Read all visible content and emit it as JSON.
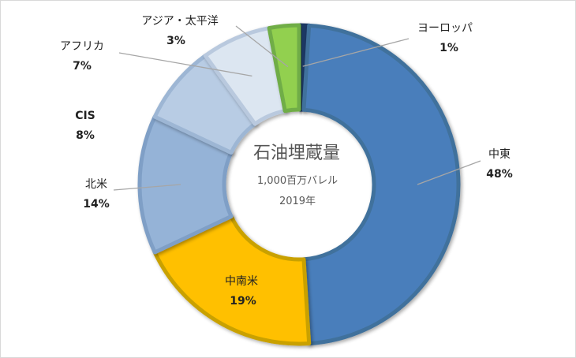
{
  "chart_data": {
    "type": "pie",
    "title": "石油埋蔵量",
    "subtitle_lines": [
      "1,000百万バレル",
      "2019年"
    ],
    "categories": [
      "ヨーロッパ",
      "中東",
      "中南米",
      "北米",
      "CIS",
      "アフリカ",
      "アジア・太平洋"
    ],
    "values": [
      1,
      48,
      19,
      14,
      8,
      7,
      3
    ],
    "value_labels": [
      "1%",
      "48%",
      "19%",
      "14%",
      "8%",
      "7%",
      "3%"
    ],
    "colors": [
      "#1f3864",
      "#4a7ebb",
      "#ffc000",
      "#95b3d7",
      "#b8cce4",
      "#dce6f1",
      "#92d050"
    ],
    "highlight_label_color": "#ff0000",
    "donut": true
  }
}
